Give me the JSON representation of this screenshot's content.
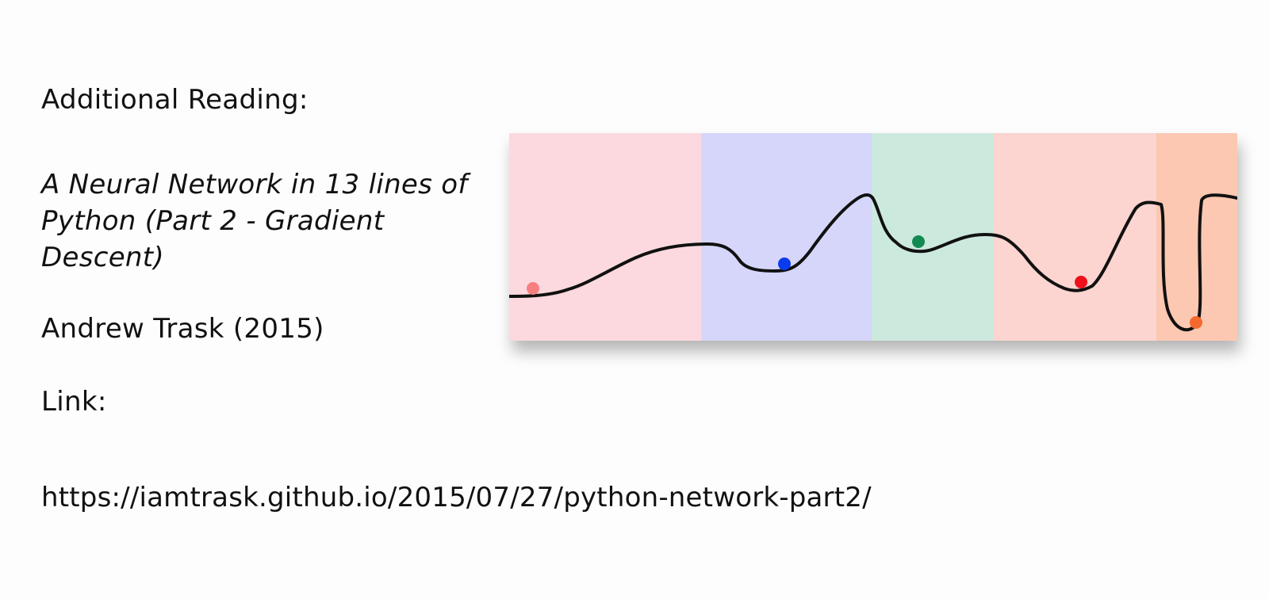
{
  "slide": {
    "heading": "Additional Reading:",
    "article_title": "A Neural Network in 13 lines of Python (Part 2 - Gradient Descent)",
    "author": "Andrew Trask (2015)",
    "link_label": "Link:",
    "link_url": "https://iamtrask.github.io/2015/07/27/python-network-part2/"
  },
  "figure": {
    "band_colors": [
      "#fcd9de",
      "#d5d6fa",
      "#cce9de",
      "#fcd4d0",
      "#fcc8b2"
    ],
    "curve_color": "#111111",
    "ball_colors": [
      "#f77f7f",
      "#0a3bef",
      "#138a52",
      "#f00f1a",
      "#f5682e"
    ]
  }
}
